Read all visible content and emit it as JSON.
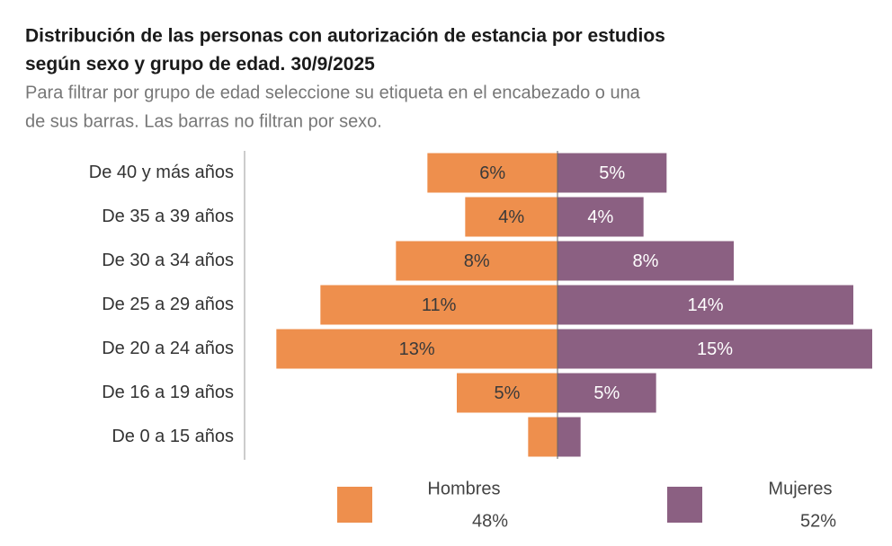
{
  "chart_data": {
    "type": "pyramid",
    "title": [
      "Distribución de las personas con autorización de estancia por estudios",
      "según sexo y grupo de edad."
    ],
    "date": "30/9/2025",
    "subtitle": [
      "Para filtrar por grupo de edad seleccione su etiqueta en el encabezado o una",
      "de sus barras. Las barras no filtran por sexo."
    ],
    "categories": [
      "De 40 y más años",
      "De 35 a 39 años",
      "De 30 a 34 años",
      "De 25 a 29 años",
      "De 20 a 24 años",
      "De 16 a 19 años",
      "De 0 a 15 años"
    ],
    "xlim": [
      0,
      15
    ],
    "series": [
      {
        "name": "Hombres",
        "side": "left",
        "color": "#ee8f4d",
        "label_color": "#3a3a3a",
        "total": "48%",
        "values": [
          6.2,
          4.4,
          7.7,
          11.3,
          13.4,
          4.8,
          1.4
        ],
        "value_labels": [
          "6%",
          "4%",
          "8%",
          "11%",
          "13%",
          "5%",
          null
        ]
      },
      {
        "name": "Mujeres",
        "side": "right",
        "color": "#8b6082",
        "label_color": "#ffffff",
        "total": "52%",
        "values": [
          5.2,
          4.1,
          8.4,
          14.1,
          15.0,
          4.7,
          1.1
        ],
        "value_labels": [
          "5%",
          "4%",
          "8%",
          "14%",
          "15%",
          "5%",
          null
        ]
      }
    ]
  }
}
